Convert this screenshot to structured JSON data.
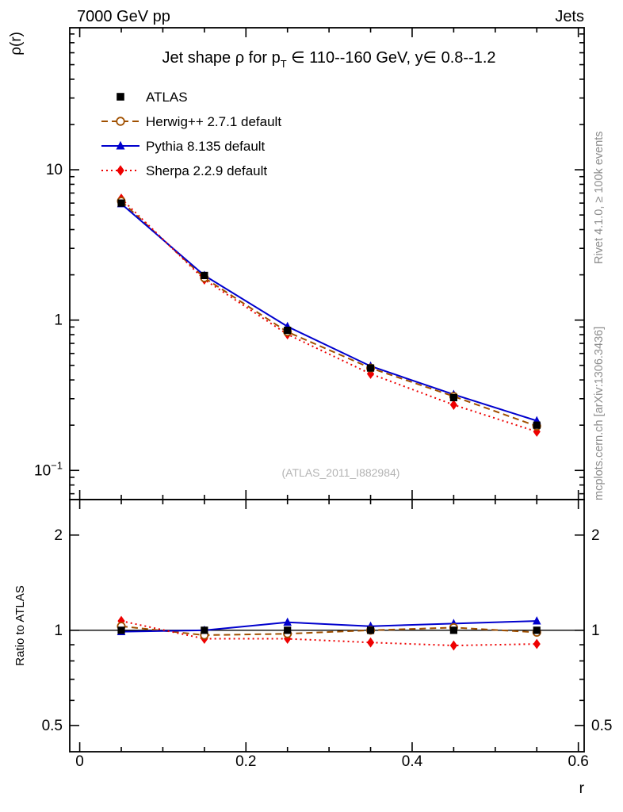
{
  "header": {
    "left": "7000 GeV pp",
    "right": "Jets"
  },
  "title": {
    "part1": "Jet shape ρ for p",
    "sub": "T",
    "part2": " ∈ 110--160 GeV, y∈ 0.8--1.2"
  },
  "axes": {
    "ylabel": "ρ(r)",
    "ratio_ylabel": "Ratio to ATLAS",
    "xlabel": "r"
  },
  "watermark": "(ATLAS_2011_I882984)",
  "side_notes": {
    "top": "Rivet 4.1.0, ≥ 100k events",
    "bottom": "mcplots.cern.ch [arXiv:1306.3436]"
  },
  "chart_data": {
    "type": "line",
    "title": "Jet shape ρ for p_T ∈ 110--160 GeV, y ∈ 0.8--1.2",
    "xlabel": "r",
    "ylabel": "ρ(r)",
    "ratio_ylabel": "Ratio to ATLAS",
    "yscale_main": "log",
    "yscale_ratio": "log",
    "grid": false,
    "legend_position": "top-left",
    "x": [
      0.05,
      0.15,
      0.25,
      0.35,
      0.45,
      0.55
    ],
    "xlim": [
      -0.012,
      0.607
    ],
    "ylim_main": [
      0.064,
      88
    ],
    "ylim_ratio": [
      0.413,
      2.59
    ],
    "x_minor_step": 0.05,
    "x_ticks": [
      {
        "v": 0,
        "t": "0"
      },
      {
        "v": 0.2,
        "t": "0.2"
      },
      {
        "v": 0.4,
        "t": "0.4"
      },
      {
        "v": 0.6,
        "t": "0.6"
      }
    ],
    "main_yticks": [
      {
        "v": 10,
        "t": "10"
      },
      {
        "v": 1,
        "t": "1"
      },
      {
        "v": 0.1,
        "t": "10",
        "sup": "−1"
      }
    ],
    "ratio_yticks": [
      {
        "v": 2,
        "t": "2"
      },
      {
        "v": 1,
        "t": "1"
      },
      {
        "v": 0.5,
        "t": "0.5"
      }
    ],
    "series": [
      {
        "name": "ATLAS",
        "color": "#000000",
        "marker": "square",
        "line": "none",
        "values": [
          6.0,
          1.98,
          0.855,
          0.48,
          0.305,
          0.2
        ],
        "ratio": [
          1,
          1,
          1,
          1,
          1,
          1
        ]
      },
      {
        "name": "Herwig++ 2.7.1 default",
        "color": "#a05000",
        "marker": "circle-open",
        "line": "dashed",
        "values": [
          6.18,
          1.91,
          0.834,
          0.48,
          0.311,
          0.197
        ],
        "ratio": [
          1.03,
          0.965,
          0.975,
          1.0,
          1.02,
          0.985
        ]
      },
      {
        "name": "Pythia 8.135 default",
        "color": "#0000cd",
        "marker": "triangle",
        "line": "solid",
        "values": [
          5.94,
          1.98,
          0.906,
          0.494,
          0.32,
          0.214
        ],
        "ratio": [
          0.99,
          1.0,
          1.06,
          1.03,
          1.05,
          1.07
        ]
      },
      {
        "name": "Sherpa 2.2.9 default",
        "color": "#ee0000",
        "marker": "diamond",
        "line": "dotted",
        "values": [
          6.42,
          1.86,
          0.804,
          0.439,
          0.273,
          0.181
        ],
        "ratio": [
          1.07,
          0.94,
          0.94,
          0.915,
          0.895,
          0.905
        ]
      }
    ]
  }
}
